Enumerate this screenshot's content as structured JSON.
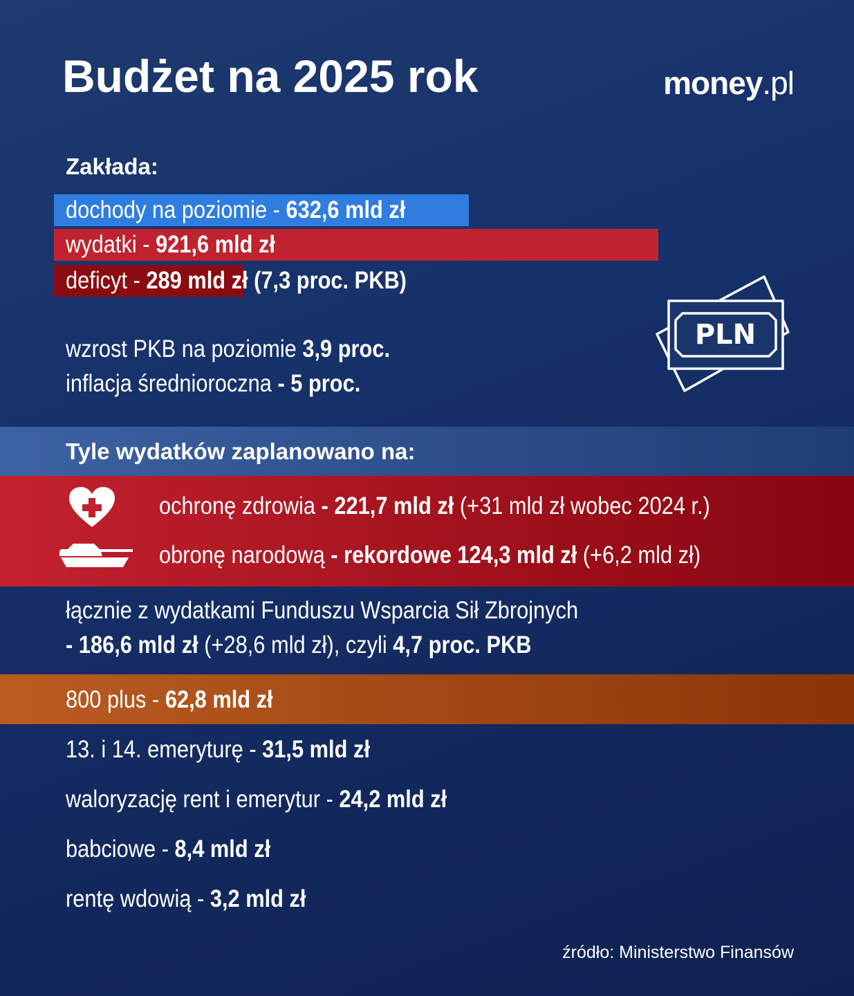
{
  "header": {
    "title": "Budżet na 2025 rok",
    "logo": {
      "main": "money",
      "suffix": ".pl"
    }
  },
  "assumptions": {
    "heading": "Zakłada:",
    "bars": [
      {
        "parts": [
          {
            "text": "dochody na poziomie - "
          },
          {
            "text": "632,6 mld zł",
            "bold": true
          }
        ],
        "value": 632.6,
        "color": "#2f7de1"
      },
      {
        "parts": [
          {
            "text": "wydatki - "
          },
          {
            "text": "921,6 mld zł",
            "bold": true
          }
        ],
        "value": 921.6,
        "color": "#c0232f"
      },
      {
        "parts": [
          {
            "text": "deficyt - "
          },
          {
            "text": "289 mld zł (7,3 proc. PKB)",
            "bold": true
          }
        ],
        "value": 289,
        "color": "#8b0b12"
      }
    ],
    "indicators": [
      [
        {
          "text": "wzrost PKB na poziomie "
        },
        {
          "text": "3,9 proc.",
          "bold": true
        }
      ],
      [
        {
          "text": "inflacja średnioroczna "
        },
        {
          "text": "- 5 proc.",
          "bold": true
        }
      ]
    ]
  },
  "icon_label": "PLN",
  "spending": {
    "heading": "Tyle wydatków zaplanowano na:",
    "highlight": [
      [
        {
          "text": "ochronę zdrowia "
        },
        {
          "text": "- 221,7 mld zł",
          "bold": true
        },
        {
          "text": " (+31 mld zł wobec 2024 r.)"
        }
      ],
      [
        {
          "text": "obronę narodową "
        },
        {
          "text": "- rekordowe 124,3 mld zł",
          "bold": true
        },
        {
          "text": " (+6,2 mld zł)"
        }
      ]
    ],
    "defense_total": [
      [
        {
          "text": "łącznie z wydatkami Funduszu Wsparcia Sił Zbrojnych"
        }
      ],
      [
        {
          "text": "- 186,6 mld zł",
          "bold": true
        },
        {
          "text": " (+28,6 mld zł), czyli "
        },
        {
          "text": "4,7 proc. PKB",
          "bold": true
        }
      ]
    ],
    "family": [
      {
        "text": "800 plus - "
      },
      {
        "text": "62,8 mld zł",
        "bold": true
      }
    ],
    "items": [
      [
        {
          "text": "13. i 14. emeryturę - "
        },
        {
          "text": "31,5 mld zł",
          "bold": true
        }
      ],
      [
        {
          "text": "waloryzację rent i emerytur - "
        },
        {
          "text": "24,2 mld zł",
          "bold": true
        }
      ],
      [
        {
          "text": "babciowe - "
        },
        {
          "text": "8,4 mld zł",
          "bold": true
        }
      ],
      [
        {
          "text": "rentę wdowią - "
        },
        {
          "text": "3,2 mld zł",
          "bold": true
        }
      ]
    ]
  },
  "source": "źródło: Ministerstwo Finansów"
}
